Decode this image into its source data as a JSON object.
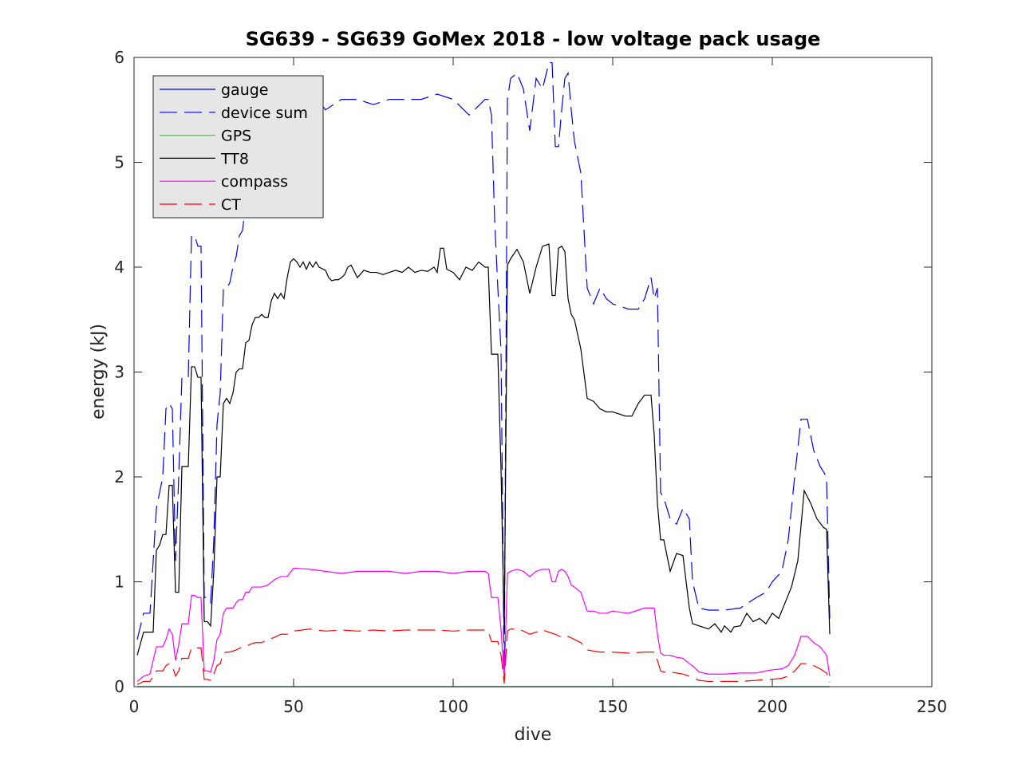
{
  "chart_data": {
    "type": "line",
    "title": "SG639 - SG639 GoMex 2018 - low voltage pack usage",
    "xlabel": "dive",
    "ylabel": "energy (kJ)",
    "xlim": [
      0,
      250
    ],
    "ylim": [
      0,
      6
    ],
    "xticks": [
      0,
      50,
      100,
      150,
      200,
      250
    ],
    "yticks": [
      0,
      1,
      2,
      3,
      4,
      5,
      6
    ],
    "grid": false,
    "legend_position": "top-left",
    "series": [
      {
        "name": "gauge",
        "color": "#0000ff",
        "style": "solid",
        "x": [
          1,
          218
        ],
        "y": [
          0,
          0
        ]
      },
      {
        "name": "device sum",
        "color": "#0000ff",
        "style": "dashed",
        "x": [
          1,
          3,
          5,
          7,
          9,
          10,
          11,
          12,
          13,
          14,
          15,
          16,
          17,
          18,
          19,
          20,
          21,
          22,
          23,
          24,
          25,
          26,
          27,
          28,
          29,
          30,
          31,
          32,
          33,
          34,
          35,
          36,
          37,
          38,
          39,
          40,
          41,
          42,
          43,
          44,
          45,
          46,
          47,
          48,
          50,
          52,
          55,
          60,
          65,
          70,
          75,
          80,
          85,
          90,
          95,
          100,
          105,
          110,
          111,
          112,
          113,
          114,
          115,
          116,
          117,
          118,
          120,
          122,
          124,
          126,
          128,
          130,
          131,
          132,
          133,
          134,
          135,
          136,
          137,
          138,
          140,
          142,
          144,
          146,
          148,
          150,
          155,
          158,
          160,
          162,
          163,
          164,
          165,
          166,
          168,
          170,
          172,
          174,
          175,
          177,
          180,
          185,
          190,
          195,
          198,
          200,
          203,
          205,
          207,
          209,
          211,
          213,
          215,
          217,
          218
        ],
        "y": [
          0.45,
          0.7,
          0.7,
          1.7,
          2.0,
          2.65,
          2.7,
          2.65,
          1.2,
          2.0,
          2.95,
          2.95,
          2.95,
          4.3,
          4.3,
          4.2,
          4.2,
          0.85,
          0.85,
          0.8,
          1.4,
          2.5,
          2.8,
          3.8,
          3.8,
          3.85,
          4.0,
          4.1,
          4.3,
          4.35,
          4.6,
          4.8,
          4.9,
          5.0,
          5.0,
          5.0,
          5.0,
          5.2,
          5.25,
          5.25,
          5.2,
          5.5,
          5.6,
          5.6,
          5.75,
          5.7,
          5.7,
          5.5,
          5.6,
          5.6,
          5.55,
          5.6,
          5.6,
          5.6,
          5.65,
          5.6,
          5.45,
          5.6,
          5.6,
          5.45,
          4.45,
          3.8,
          3.2,
          0.07,
          5.6,
          5.8,
          5.85,
          5.7,
          5.3,
          5.8,
          5.7,
          5.95,
          5.95,
          5.15,
          5.15,
          5.5,
          5.8,
          5.85,
          5.5,
          5.2,
          4.9,
          3.8,
          3.65,
          3.8,
          3.7,
          3.65,
          3.6,
          3.6,
          3.7,
          3.9,
          3.7,
          3.8,
          1.85,
          1.8,
          1.6,
          1.55,
          1.7,
          1.6,
          1.0,
          0.75,
          0.73,
          0.73,
          0.75,
          0.85,
          0.9,
          1.0,
          1.1,
          1.4,
          2.0,
          2.55,
          2.55,
          2.25,
          2.1,
          2.0,
          0.65
        ]
      },
      {
        "name": "GPS",
        "color": "#00ff00",
        "style": "solid",
        "x": [
          1,
          218
        ],
        "y": [
          0,
          0
        ]
      },
      {
        "name": "TT8",
        "color": "#000000",
        "style": "solid",
        "x": [
          1,
          3,
          5,
          6,
          7,
          8,
          9,
          10,
          11,
          12,
          13,
          14,
          15,
          16,
          17,
          18,
          19,
          20,
          21,
          22,
          23,
          24,
          25,
          26,
          27,
          28,
          29,
          30,
          31,
          32,
          33,
          34,
          35,
          36,
          37,
          38,
          39,
          40,
          41,
          42,
          43,
          44,
          45,
          46,
          47,
          48,
          49,
          50,
          51,
          52,
          53,
          54,
          55,
          56,
          57,
          58,
          60,
          61,
          62,
          63,
          64,
          65,
          66,
          67,
          68,
          70,
          72,
          74,
          76,
          78,
          80,
          82,
          84,
          86,
          88,
          90,
          92,
          94,
          95,
          96,
          97,
          98,
          100,
          102,
          104,
          106,
          108,
          110,
          111,
          112,
          113,
          114,
          115,
          116,
          117,
          118,
          120,
          122,
          124,
          126,
          128,
          130,
          131,
          132,
          133,
          134,
          135,
          136,
          137,
          138,
          140,
          142,
          144,
          146,
          148,
          150,
          152,
          154,
          156,
          158,
          160,
          162,
          163,
          164,
          165,
          166,
          168,
          170,
          172,
          174,
          175,
          177,
          180,
          182,
          184,
          185,
          186,
          187,
          188,
          190,
          192,
          194,
          196,
          198,
          200,
          202,
          204,
          206,
          208,
          210,
          212,
          214,
          216,
          217,
          218
        ],
        "y": [
          0.3,
          0.52,
          0.52,
          0.52,
          1.3,
          1.35,
          1.45,
          1.45,
          1.92,
          1.92,
          0.9,
          0.9,
          2.1,
          2.1,
          2.1,
          3.05,
          3.05,
          2.95,
          2.95,
          0.62,
          0.62,
          0.58,
          1.1,
          2.0,
          2.0,
          2.7,
          2.75,
          2.7,
          2.8,
          3.0,
          3.03,
          3.03,
          3.28,
          3.3,
          3.45,
          3.52,
          3.52,
          3.55,
          3.52,
          3.52,
          3.68,
          3.75,
          3.7,
          3.75,
          3.7,
          3.9,
          4.05,
          4.08,
          4.05,
          4.0,
          4.05,
          3.98,
          4.05,
          4.0,
          4.05,
          4.0,
          3.97,
          3.9,
          3.87,
          3.88,
          3.88,
          3.9,
          3.93,
          4.0,
          4.02,
          3.9,
          3.97,
          3.95,
          3.95,
          3.93,
          3.95,
          3.97,
          3.95,
          4.0,
          3.95,
          3.97,
          3.96,
          4.0,
          3.95,
          4.18,
          4.18,
          3.98,
          3.95,
          3.88,
          4.0,
          3.97,
          4.05,
          4.0,
          4.0,
          3.17,
          3.17,
          3.17,
          2.07,
          0.52,
          4.02,
          4.08,
          4.17,
          4.05,
          3.75,
          4.0,
          4.2,
          4.22,
          3.73,
          3.73,
          4.18,
          4.2,
          4.15,
          3.7,
          3.55,
          3.5,
          3.22,
          2.75,
          2.72,
          2.65,
          2.62,
          2.62,
          2.6,
          2.58,
          2.58,
          2.7,
          2.78,
          2.78,
          2.4,
          1.75,
          1.4,
          1.4,
          1.1,
          1.27,
          1.25,
          0.75,
          0.6,
          0.58,
          0.55,
          0.6,
          0.52,
          0.58,
          0.55,
          0.52,
          0.57,
          0.58,
          0.7,
          0.62,
          0.65,
          0.6,
          0.7,
          0.65,
          0.8,
          0.95,
          1.2,
          1.87,
          1.75,
          1.6,
          1.52,
          1.5,
          0.5
        ]
      },
      {
        "name": "compass",
        "color": "#ff00ff",
        "style": "solid",
        "x": [
          1,
          3,
          5,
          7,
          9,
          10,
          11,
          12,
          13,
          14,
          15,
          16,
          17,
          18,
          19,
          20,
          21,
          22,
          23,
          24,
          25,
          26,
          27,
          28,
          29,
          30,
          31,
          32,
          33,
          34,
          35,
          36,
          37,
          38,
          40,
          42,
          44,
          46,
          48,
          50,
          55,
          60,
          65,
          70,
          75,
          80,
          85,
          90,
          95,
          100,
          105,
          110,
          111,
          112,
          113,
          114,
          115,
          116,
          117,
          118,
          120,
          122,
          124,
          126,
          128,
          130,
          131,
          132,
          133,
          134,
          135,
          136,
          137,
          138,
          140,
          142,
          144,
          146,
          148,
          150,
          155,
          160,
          162,
          163,
          164,
          165,
          166,
          168,
          170,
          172,
          174,
          175,
          177,
          180,
          185,
          190,
          195,
          198,
          200,
          203,
          205,
          207,
          209,
          211,
          213,
          215,
          217,
          218
        ],
        "y": [
          0.05,
          0.1,
          0.12,
          0.38,
          0.38,
          0.45,
          0.55,
          0.5,
          0.25,
          0.4,
          0.6,
          0.6,
          0.6,
          0.87,
          0.87,
          0.85,
          0.85,
          0.15,
          0.15,
          0.14,
          0.25,
          0.45,
          0.5,
          0.7,
          0.75,
          0.75,
          0.75,
          0.8,
          0.83,
          0.83,
          0.9,
          0.9,
          0.95,
          0.95,
          0.95,
          0.97,
          1.02,
          1.05,
          1.05,
          1.13,
          1.12,
          1.1,
          1.08,
          1.1,
          1.1,
          1.1,
          1.08,
          1.1,
          1.1,
          1.08,
          1.1,
          1.1,
          1.08,
          0.85,
          0.85,
          0.85,
          0.55,
          0.07,
          1.08,
          1.1,
          1.12,
          1.1,
          1.05,
          1.1,
          1.12,
          1.12,
          1.0,
          1.0,
          1.1,
          1.12,
          1.1,
          1.05,
          0.97,
          0.95,
          0.9,
          0.72,
          0.72,
          0.7,
          0.7,
          0.72,
          0.7,
          0.75,
          0.75,
          0.75,
          0.5,
          0.32,
          0.3,
          0.3,
          0.28,
          0.27,
          0.22,
          0.2,
          0.14,
          0.12,
          0.12,
          0.13,
          0.13,
          0.15,
          0.16,
          0.17,
          0.2,
          0.3,
          0.48,
          0.48,
          0.42,
          0.38,
          0.3,
          0.1
        ]
      },
      {
        "name": "CT",
        "color": "#ff0000",
        "style": "dashed",
        "x": [
          1,
          3,
          5,
          7,
          9,
          10,
          11,
          12,
          13,
          14,
          15,
          16,
          17,
          18,
          19,
          20,
          21,
          22,
          23,
          24,
          25,
          26,
          27,
          28,
          29,
          30,
          32,
          34,
          36,
          38,
          40,
          42,
          44,
          46,
          48,
          50,
          55,
          60,
          65,
          70,
          75,
          80,
          85,
          90,
          95,
          100,
          105,
          110,
          111,
          112,
          113,
          114,
          115,
          116,
          117,
          118,
          120,
          122,
          124,
          126,
          128,
          130,
          132,
          134,
          136,
          138,
          140,
          142,
          144,
          146,
          148,
          150,
          155,
          160,
          162,
          163,
          164,
          165,
          166,
          168,
          170,
          172,
          174,
          175,
          177,
          180,
          185,
          190,
          195,
          198,
          200,
          203,
          205,
          207,
          209,
          211,
          213,
          215,
          217,
          218
        ],
        "y": [
          0.02,
          0.05,
          0.05,
          0.15,
          0.15,
          0.2,
          0.22,
          0.2,
          0.1,
          0.15,
          0.27,
          0.27,
          0.27,
          0.37,
          0.37,
          0.37,
          0.37,
          0.07,
          0.07,
          0.06,
          0.12,
          0.2,
          0.22,
          0.32,
          0.33,
          0.33,
          0.35,
          0.38,
          0.4,
          0.42,
          0.42,
          0.45,
          0.47,
          0.5,
          0.5,
          0.53,
          0.55,
          0.53,
          0.54,
          0.53,
          0.54,
          0.53,
          0.54,
          0.54,
          0.54,
          0.53,
          0.54,
          0.54,
          0.53,
          0.43,
          0.43,
          0.43,
          0.3,
          0.03,
          0.53,
          0.55,
          0.55,
          0.53,
          0.5,
          0.52,
          0.54,
          0.52,
          0.5,
          0.47,
          0.48,
          0.45,
          0.42,
          0.35,
          0.34,
          0.33,
          0.33,
          0.33,
          0.32,
          0.33,
          0.33,
          0.33,
          0.25,
          0.15,
          0.14,
          0.14,
          0.13,
          0.12,
          0.1,
          0.09,
          0.06,
          0.05,
          0.05,
          0.05,
          0.06,
          0.07,
          0.07,
          0.08,
          0.1,
          0.15,
          0.22,
          0.22,
          0.2,
          0.17,
          0.13,
          0.04
        ]
      }
    ]
  }
}
